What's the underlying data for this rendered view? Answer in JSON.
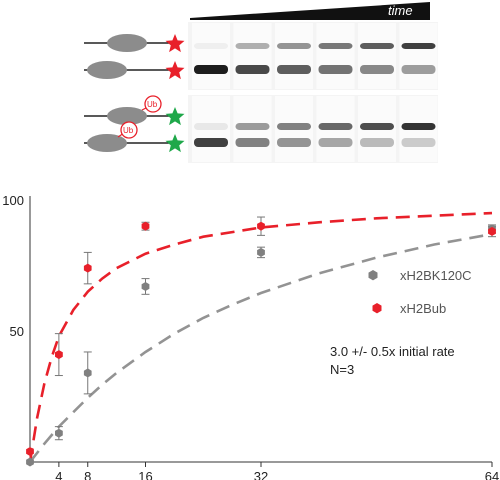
{
  "gel": {
    "time_label": "time",
    "ub_label": "Ub",
    "lanes": 6,
    "colors": {
      "star_red": "#e8202a",
      "star_green": "#1fa84a",
      "ub_circle": "#e8202a",
      "nucleosome": "#8c8c8c",
      "wedge": "#111111"
    }
  },
  "annotation": {
    "rate": "3.0 +/- 0.5x initial rate",
    "n": "N=3"
  },
  "chart_data": {
    "type": "scatter",
    "x_ticks": [
      4,
      8,
      16,
      32,
      64
    ],
    "y_ticks": [
      50,
      100
    ],
    "xlim": [
      0,
      64
    ],
    "ylim": [
      0,
      100
    ],
    "grid": false,
    "legend_position": "right",
    "series": [
      {
        "name": "xH2BK120C",
        "color": "#808080",
        "points": [
          {
            "x": 0,
            "y": 0,
            "err": 0
          },
          {
            "x": 4,
            "y": 11,
            "err": 2.5
          },
          {
            "x": 8,
            "y": 34,
            "err": 8
          },
          {
            "x": 16,
            "y": 67,
            "err": 3
          },
          {
            "x": 32,
            "y": 80,
            "err": 2
          },
          {
            "x": 64,
            "y": 89,
            "err": 1.5
          }
        ],
        "fit": [
          [
            0,
            0
          ],
          [
            2,
            7
          ],
          [
            4,
            13.5
          ],
          [
            6,
            19
          ],
          [
            8,
            24.5
          ],
          [
            10,
            29.5
          ],
          [
            12,
            34
          ],
          [
            16,
            42
          ],
          [
            20,
            49
          ],
          [
            24,
            55
          ],
          [
            28,
            60
          ],
          [
            32,
            64.5
          ],
          [
            40,
            72
          ],
          [
            48,
            78
          ],
          [
            56,
            83
          ],
          [
            64,
            87
          ]
        ]
      },
      {
        "name": "xH2Bub",
        "color": "#e8202a",
        "points": [
          {
            "x": 0,
            "y": 4,
            "err": 0
          },
          {
            "x": 4,
            "y": 41,
            "err": 8
          },
          {
            "x": 8,
            "y": 74,
            "err": 6
          },
          {
            "x": 16,
            "y": 90,
            "err": 1.5
          },
          {
            "x": 32,
            "y": 90,
            "err": 3.5
          },
          {
            "x": 64,
            "y": 88,
            "err": 2
          }
        ],
        "fit": [
          [
            0,
            0
          ],
          [
            1,
            17
          ],
          [
            2,
            30
          ],
          [
            3,
            40
          ],
          [
            4,
            48
          ],
          [
            6,
            58
          ],
          [
            8,
            65
          ],
          [
            10,
            70
          ],
          [
            12,
            74
          ],
          [
            16,
            79.5
          ],
          [
            20,
            83
          ],
          [
            24,
            86
          ],
          [
            32,
            89.5
          ],
          [
            40,
            91.5
          ],
          [
            48,
            93
          ],
          [
            56,
            94
          ],
          [
            64,
            95
          ]
        ]
      }
    ]
  }
}
